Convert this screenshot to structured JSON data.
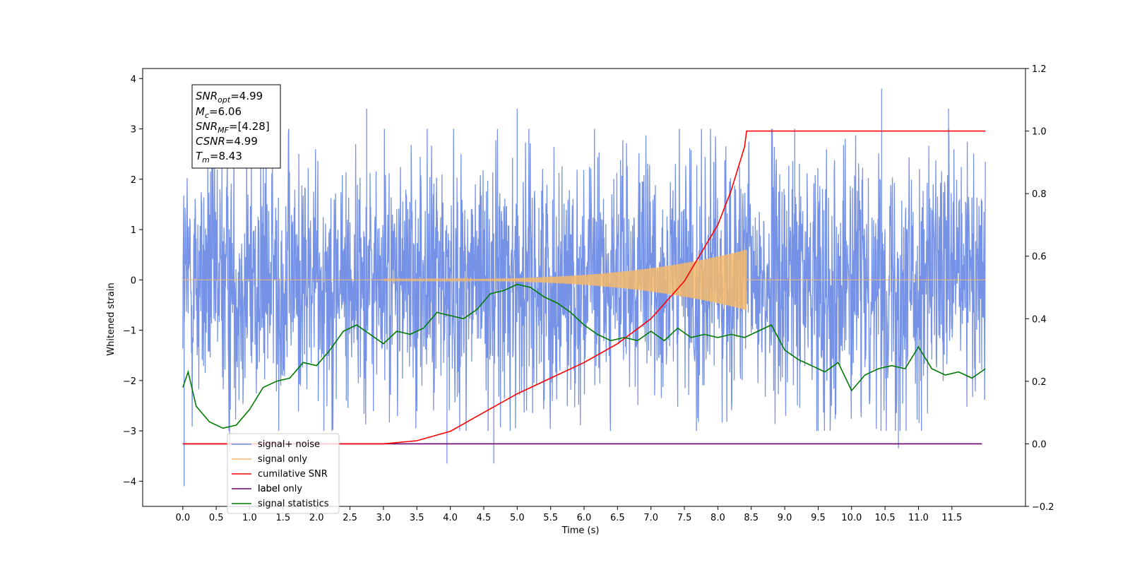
{
  "chart_data": {
    "type": "line",
    "title": "",
    "xlabel": "Time (s)",
    "ylabel_left": "Whitened strain",
    "ylabel_right": "",
    "xlim": [
      -0.6,
      12.6
    ],
    "ylim_left": [
      -4.5,
      4.2
    ],
    "ylim_right": [
      -0.2,
      1.2
    ],
    "x_ticks": [
      "0.0",
      "0.5",
      "1.0",
      "1.5",
      "2.0",
      "2.5",
      "3.0",
      "3.5",
      "4.0",
      "4.5",
      "5.0",
      "5.5",
      "6.0",
      "6.5",
      "7.0",
      "7.5",
      "8.0",
      "8.5",
      "9.0",
      "9.5",
      "10.0",
      "10.5",
      "11.0",
      "11.5"
    ],
    "y_ticks_left": [
      "4",
      "3",
      "2",
      "1",
      "0",
      "−1",
      "−2",
      "−3",
      "−4"
    ],
    "y_ticks_right": [
      "1.2",
      "1.0",
      "0.8",
      "0.6",
      "0.4",
      "0.2",
      "0.0",
      "−0.2"
    ],
    "grid": false,
    "legend_position": "bottom-left",
    "colors": {
      "signal_noise": "#6f8ce6",
      "signal_only": "#f5b96a",
      "cumulative_snr": "#ff0000",
      "label": "#6a006a",
      "signal_statistics": "#007a00"
    },
    "series": [
      {
        "name": "signal+ noise",
        "axis": "left",
        "description_range": "noise band approx ±2.3 over t = 0.0–12.0, extremes from −4.1 to 3.8",
        "envelope_upper": 2.3,
        "envelope_lower": -2.3,
        "peaks": [
          {
            "x": 0.02,
            "y": -4.1
          },
          {
            "x": 0.7,
            "y": -3.4
          },
          {
            "x": 2.75,
            "y": 3.4
          },
          {
            "x": 3.95,
            "y": -3.65
          },
          {
            "x": 4.65,
            "y": -3.65
          },
          {
            "x": 5.0,
            "y": 3.4
          },
          {
            "x": 9.15,
            "y": 3.0
          },
          {
            "x": 10.45,
            "y": 3.8
          },
          {
            "x": 10.7,
            "y": -3.35
          },
          {
            "x": 11.45,
            "y": 3.4
          }
        ]
      },
      {
        "name": "signal only",
        "axis": "left",
        "chirp_start": 3.0,
        "chirp_end": 8.43,
        "amp_at_start": 0.01,
        "amp_at_end": 0.6
      },
      {
        "name": "cumilative SNR",
        "axis": "right",
        "x": [
          0.0,
          3.0,
          3.5,
          4.0,
          4.5,
          5.0,
          5.5,
          6.0,
          6.5,
          7.0,
          7.5,
          8.0,
          8.2,
          8.4,
          8.43,
          8.45,
          12.0
        ],
        "y": [
          0.0,
          0.0,
          0.01,
          0.04,
          0.1,
          0.16,
          0.21,
          0.26,
          0.32,
          0.4,
          0.52,
          0.7,
          0.81,
          0.95,
          1.0,
          1.0,
          1.0
        ]
      },
      {
        "name": "label only",
        "axis": "right",
        "x": [
          0.0,
          12.0
        ],
        "y": [
          0.0,
          0.0
        ]
      },
      {
        "name": "label",
        "axis": "right",
        "x": [
          0.0,
          11.95
        ],
        "y": [
          0.0,
          0.0
        ]
      },
      {
        "name": "signal statistics",
        "axis": "right",
        "x": [
          0.0,
          0.08,
          0.2,
          0.4,
          0.6,
          0.8,
          1.0,
          1.2,
          1.4,
          1.6,
          1.8,
          2.0,
          2.2,
          2.4,
          2.6,
          2.8,
          3.0,
          3.2,
          3.4,
          3.6,
          3.8,
          4.0,
          4.2,
          4.4,
          4.6,
          4.8,
          5.0,
          5.2,
          5.4,
          5.6,
          5.8,
          6.0,
          6.2,
          6.4,
          6.6,
          6.8,
          7.0,
          7.2,
          7.4,
          7.6,
          7.8,
          8.0,
          8.2,
          8.4,
          8.6,
          8.8,
          9.0,
          9.2,
          9.4,
          9.6,
          9.8,
          10.0,
          10.2,
          10.4,
          10.6,
          10.8,
          11.0,
          11.2,
          11.4,
          11.6,
          11.8,
          12.0
        ],
        "y": [
          0.18,
          0.23,
          0.12,
          0.07,
          0.05,
          0.06,
          0.11,
          0.18,
          0.2,
          0.21,
          0.26,
          0.25,
          0.3,
          0.36,
          0.38,
          0.35,
          0.32,
          0.36,
          0.35,
          0.37,
          0.42,
          0.41,
          0.4,
          0.43,
          0.48,
          0.49,
          0.51,
          0.5,
          0.47,
          0.45,
          0.42,
          0.38,
          0.35,
          0.33,
          0.34,
          0.33,
          0.36,
          0.33,
          0.37,
          0.34,
          0.35,
          0.34,
          0.35,
          0.34,
          0.36,
          0.38,
          0.3,
          0.27,
          0.25,
          0.23,
          0.26,
          0.17,
          0.22,
          0.24,
          0.25,
          0.24,
          0.31,
          0.24,
          0.22,
          0.23,
          0.21,
          0.24
        ]
      }
    ],
    "info_box": {
      "snr_opt": {
        "main": "SNR",
        "sub": "opt",
        "value": "=4.99"
      },
      "mc": {
        "main": "M",
        "sub": "c",
        "value": "=6.06"
      },
      "snr_mf": {
        "main": "SNR",
        "sub": "MF",
        "value": "=[4.28]"
      },
      "csnr": {
        "main": "CSNR",
        "value": "=4.99"
      },
      "tm": {
        "main": "T",
        "sub": "m",
        "value": "=8.43"
      }
    },
    "legend": [
      {
        "label": "signal+ noise",
        "color": "#6f8ce6"
      },
      {
        "label": "signal only",
        "color": "#f5b96a"
      },
      {
        "label": "cumilative SNR",
        "color": "#ff0000"
      },
      {
        "label": "label",
        "color": "#6a006a"
      },
      {
        "label": "signal statistics",
        "color": "#007a00"
      }
    ],
    "legend_hidden_text": "label only"
  }
}
